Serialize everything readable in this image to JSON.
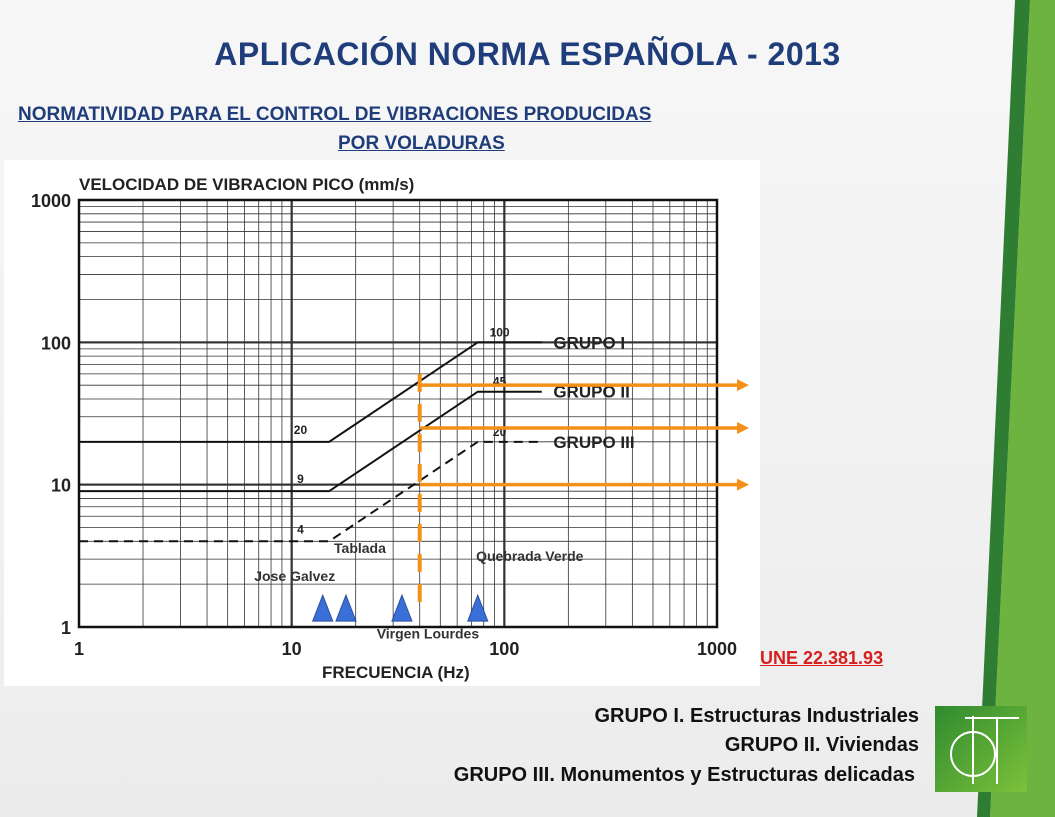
{
  "title": "APLICACIÓN NORMA ESPAÑOLA - 2013",
  "subtitle_line1": "NORMATIVIDAD PARA EL CONTROL DE VIBRACIONES PRODUCIDAS",
  "subtitle_line2": " POR VOLADURAS",
  "chart_data": {
    "type": "line",
    "title": "VELOCIDAD DE VIBRACION PICO (mm/s)",
    "xlabel": "FRECUENCIA (Hz)",
    "ylabel": "VELOCIDAD DE VIBRACION PICO (mm/s)",
    "x_scale": "log",
    "y_scale": "log",
    "xlim": [
      1,
      1000
    ],
    "ylim": [
      1,
      1000
    ],
    "x_ticks": [
      "1",
      "10",
      "100",
      "1000"
    ],
    "y_ticks": [
      "1",
      "10",
      "100",
      "1000"
    ],
    "grid": true,
    "series": [
      {
        "name": "GRUPO I",
        "x": [
          1,
          15,
          75,
          150
        ],
        "y": [
          20,
          20,
          100,
          100
        ],
        "style": "solid",
        "endpoint_labels": [
          "20",
          "100"
        ]
      },
      {
        "name": "GRUPO II",
        "x": [
          1,
          15,
          75,
          150
        ],
        "y": [
          9,
          9,
          45,
          45
        ],
        "style": "solid",
        "endpoint_labels": [
          "9",
          "45"
        ]
      },
      {
        "name": "GRUPO III",
        "x": [
          1,
          15,
          75,
          150
        ],
        "y": [
          4,
          4,
          20,
          20
        ],
        "style": "dashed",
        "endpoint_labels": [
          "4",
          "20"
        ]
      }
    ],
    "vertical_marker_x": 40,
    "annotations": [
      {
        "text": "50",
        "y": 50
      },
      {
        "text": "25",
        "y": 25
      },
      {
        "text": "10",
        "y": 10
      }
    ],
    "markers": [
      {
        "label": "Jose Galvez",
        "x": 14
      },
      {
        "label": "Tablada",
        "x": 18
      },
      {
        "label": "Virgen Lourdes",
        "x": 33
      },
      {
        "label": "Quebrada Verde",
        "x": 75
      }
    ],
    "colors": {
      "annotation": "#f39018",
      "marker": "#3b6fd8",
      "curve": "#111111"
    }
  },
  "norm_label": "UNE 22.381.93",
  "groups": [
    "GRUPO I. Estructuras Industriales",
    "GRUPO II. Viviendas",
    "GRUPO III. Monumentos y Estructuras delicadas"
  ]
}
